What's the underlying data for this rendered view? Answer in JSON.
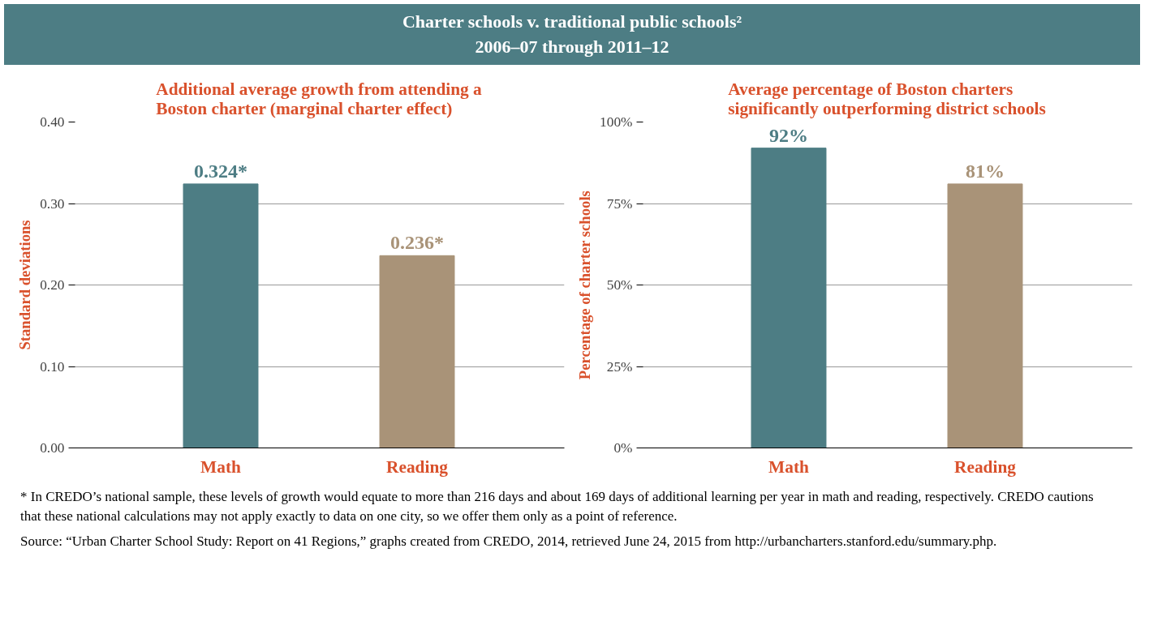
{
  "chart_data": [
    {
      "type": "bar",
      "title": "Additional average growth from attending a Boston charter (marginal charter effect)",
      "ylabel": "Standard deviations",
      "categories": [
        "Math",
        "Reading"
      ],
      "values": [
        0.324,
        0.236
      ],
      "colors": [
        "#4d7d84",
        "#a99378"
      ],
      "value_labels": [
        "0.324*",
        "0.236*"
      ],
      "ylim": [
        0,
        0.4
      ],
      "yticks": [
        {
          "value": 0,
          "label": "0.00"
        },
        {
          "value": 0.1,
          "label": "0.10"
        },
        {
          "value": 0.2,
          "label": "0.20"
        },
        {
          "value": 0.3,
          "label": "0.30"
        },
        {
          "value": 0.4,
          "label": "0.40"
        }
      ],
      "grid": "y"
    },
    {
      "type": "bar",
      "title": "Average percentage of Boston charters significantly outperforming district schools",
      "ylabel": "Percentage of charter schools",
      "categories": [
        "Math",
        "Reading"
      ],
      "values": [
        92,
        81
      ],
      "colors": [
        "#4d7d84",
        "#a99378"
      ],
      "value_labels": [
        "92%",
        "81%"
      ],
      "ylim": [
        0,
        100
      ],
      "yticks": [
        {
          "value": 0,
          "label": "0%"
        },
        {
          "value": 25,
          "label": "25%"
        },
        {
          "value": 50,
          "label": "50%"
        },
        {
          "value": 75,
          "label": "75%"
        },
        {
          "value": 100,
          "label": "100%"
        }
      ],
      "grid": "y"
    },
    {
      "type": "other",
      "title": "Charter schools v. traditional public schools²",
      "subtitle": "2006–07 through 2011–12",
      "annotations": [
        "* In CREDO’s national sample, these levels of growth would equate to more than 216 days and about 169 days of additional learning per year in math and reading, respectively. CREDO cautions that these national calculations may not apply exactly to data on one city, so we offer them only as a point of reference.",
        "Source: “Urban Charter School Study: Report on 41 Regions,” graphs created from CREDO, 2014, retrieved June 24, 2015 from http://urbancharters.stanford.edu/summary.php."
      ]
    }
  ]
}
